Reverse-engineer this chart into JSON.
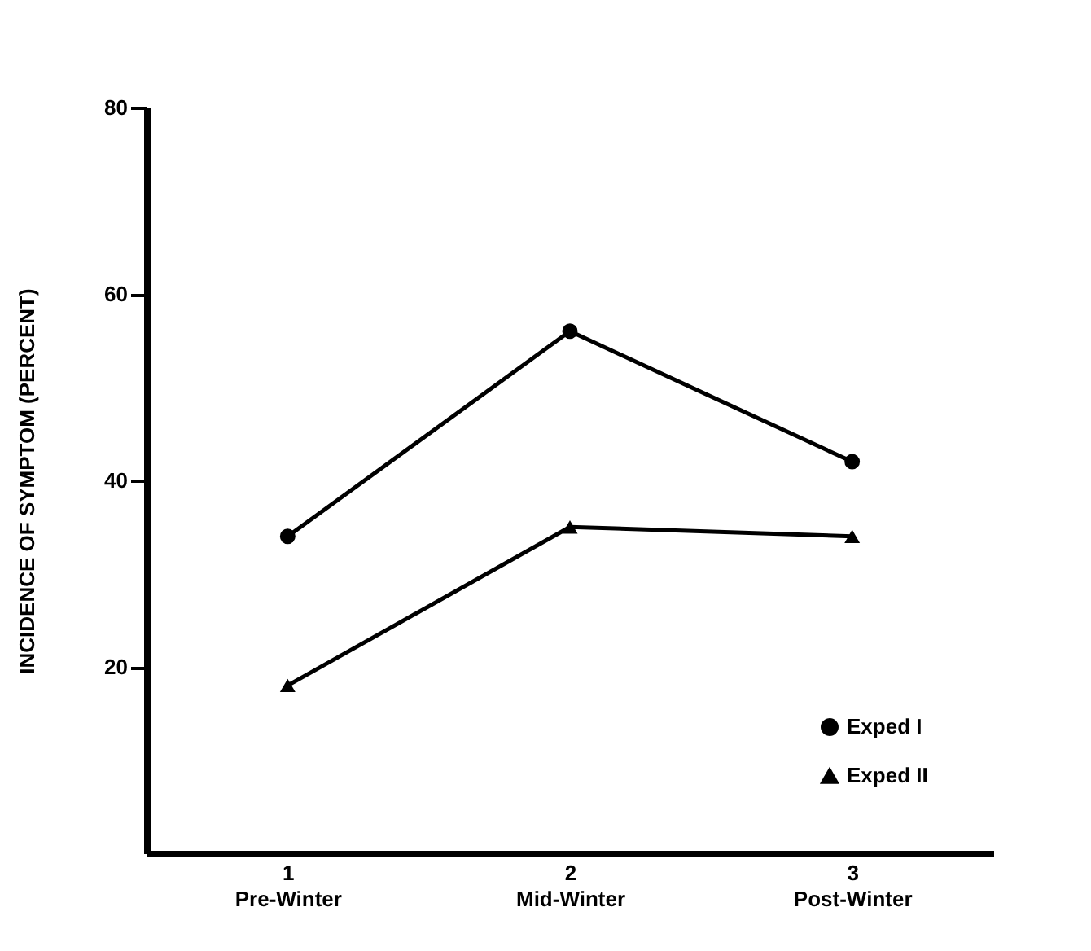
{
  "chart_data": {
    "type": "line",
    "ylabel": "INCIDENCE OF SYMPTOM  (PERCENT)",
    "categories": [
      "1\nPre-Winter",
      "2\nMid-Winter",
      "3\nPost-Winter"
    ],
    "series": [
      {
        "name": "Exped I",
        "color": "#000000",
        "marker": "circle",
        "values": [
          34,
          56,
          42
        ]
      },
      {
        "name": "Exped II",
        "color": "#000000",
        "marker": "triangle",
        "values": [
          18,
          35,
          34
        ]
      }
    ],
    "ylim": [
      0,
      80
    ],
    "yticks": [
      20,
      40,
      60,
      80
    ],
    "grid": false,
    "legend": "bottom right",
    "line_style": "solid"
  }
}
